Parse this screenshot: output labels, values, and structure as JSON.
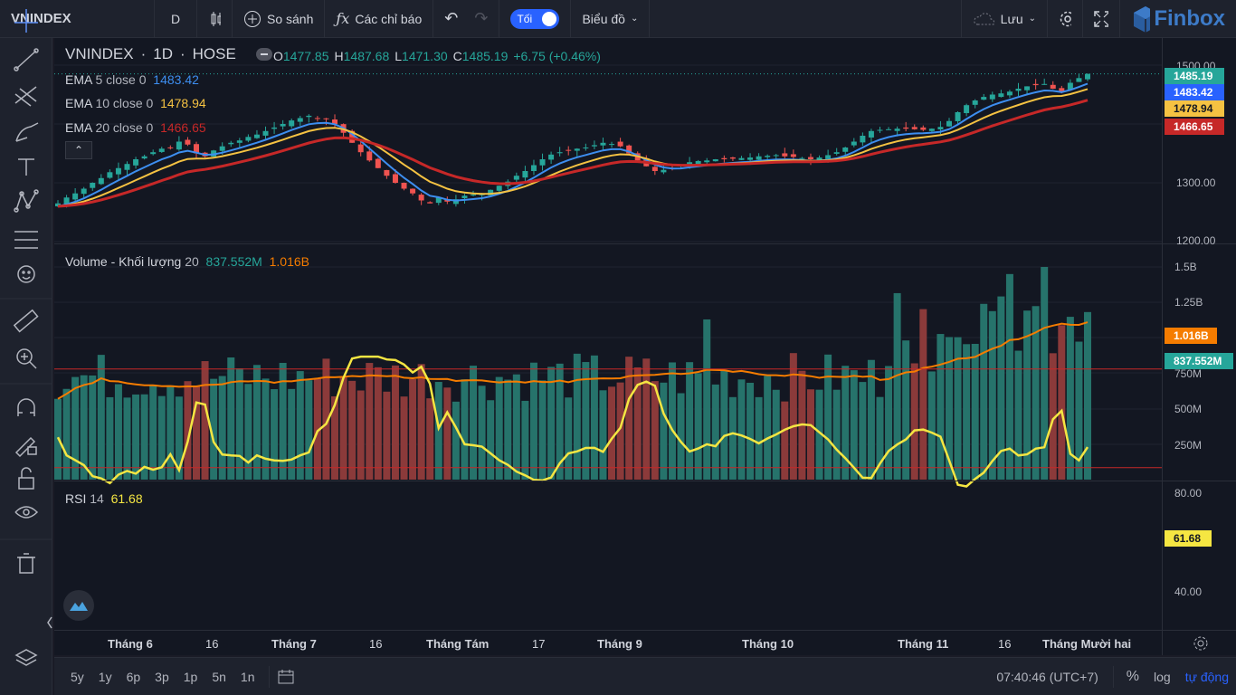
{
  "topbar": {
    "symbol": "VNINDEX",
    "interval": "D",
    "compare_label": "So sánh",
    "indicators_label": "Các chỉ báo",
    "theme_toggle_label": "Tối",
    "chart_type_label": "Biểu đồ",
    "save_label": "Lưu",
    "brand": "Finbox"
  },
  "legend": {
    "symbol": "VNINDEX",
    "interval": "1D",
    "exchange": "HOSE",
    "o_key": "O",
    "o_val": "1477.85",
    "h_key": "H",
    "h_val": "1487.68",
    "l_key": "L",
    "l_val": "1471.30",
    "c_key": "C",
    "c_val": "1485.19",
    "change": "+6.75 (+0.46%)",
    "ema": [
      {
        "name": "EMA",
        "params": "5 close 0",
        "value": "1483.42",
        "color": "#3d8ef0"
      },
      {
        "name": "EMA",
        "params": "10 close 0",
        "value": "1478.94",
        "color": "#f5c242"
      },
      {
        "name": "EMA",
        "params": "20 close 0",
        "value": "1466.65",
        "color": "#c62828"
      }
    ]
  },
  "volume_legend": {
    "name": "Volume - Khối lượng",
    "period": "20",
    "value": "837.552M",
    "ma_value": "1.016B"
  },
  "rsi_legend": {
    "name": "RSI",
    "period": "14",
    "value": "61.68"
  },
  "price_axis": {
    "labels": [
      "1500.00",
      "1300.00",
      "1200.00"
    ]
  },
  "price_tags": {
    "close": "1485.19",
    "ema5": "1483.42",
    "ema10": "1478.94",
    "ema20": "1466.65"
  },
  "volume_axis": {
    "labels": [
      "1.5B",
      "1.25B",
      "750M",
      "500M",
      "250M"
    ],
    "tag_ma": "1.016B",
    "tag_vol": "837.552M"
  },
  "rsi_axis": {
    "labels": [
      "80.00",
      "40.00"
    ],
    "tag": "61.68"
  },
  "time_axis": [
    {
      "label": "Tháng 6",
      "bold": true
    },
    {
      "label": "16",
      "bold": false
    },
    {
      "label": "Tháng 7",
      "bold": true
    },
    {
      "label": "16",
      "bold": false
    },
    {
      "label": "Tháng Tám",
      "bold": true
    },
    {
      "label": "17",
      "bold": false
    },
    {
      "label": "Tháng 9",
      "bold": true
    },
    {
      "label": "Tháng 10",
      "bold": true
    },
    {
      "label": "Tháng 11",
      "bold": true
    },
    {
      "label": "16",
      "bold": false
    },
    {
      "label": "Tháng Mười hai",
      "bold": true
    }
  ],
  "bottombar": {
    "ranges": [
      "5y",
      "1y",
      "6p",
      "3p",
      "1p",
      "5n",
      "1n"
    ],
    "clock": "07:40:46 (UTC+7)",
    "percent": "%",
    "log": "log",
    "auto": "tự động"
  },
  "colors": {
    "up": "#26a69a",
    "down": "#ef5350",
    "rsi": "#f5e642",
    "vol_ma": "#f57c00",
    "accent": "#2962ff"
  },
  "chart_data": {
    "type": "candlestick",
    "close_series": [
      1265,
      1275,
      1282,
      1290,
      1300,
      1308,
      1318,
      1325,
      1332,
      1340,
      1345,
      1352,
      1358,
      1360,
      1370,
      1365,
      1350,
      1345,
      1355,
      1362,
      1368,
      1372,
      1378,
      1382,
      1388,
      1394,
      1400,
      1406,
      1410,
      1414,
      1410,
      1408,
      1400,
      1385,
      1368,
      1352,
      1338,
      1325,
      1312,
      1300,
      1290,
      1282,
      1270,
      1265,
      1275,
      1268,
      1272,
      1278,
      1280,
      1282,
      1288,
      1295,
      1302,
      1312,
      1320,
      1330,
      1340,
      1348,
      1352,
      1355,
      1358,
      1360,
      1364,
      1368,
      1366,
      1362,
      1350,
      1338,
      1328,
      1320,
      1322,
      1325,
      1330,
      1335,
      1337,
      1338,
      1340,
      1340,
      1341,
      1342,
      1343,
      1345,
      1346,
      1347,
      1345,
      1344,
      1342,
      1340,
      1343,
      1347,
      1352,
      1360,
      1370,
      1380,
      1388,
      1390,
      1391,
      1392,
      1392,
      1391,
      1390,
      1392,
      1395,
      1405,
      1420,
      1432,
      1440,
      1446,
      1450,
      1452,
      1455,
      1460,
      1464,
      1466,
      1468,
      1460,
      1455,
      1470,
      1478,
      1485
    ],
    "volume_ma20_start": "750M",
    "volume_ma20_end": "1.016B",
    "rsi_last": 61.68,
    "rsi_levels": [
      70,
      30
    ]
  }
}
